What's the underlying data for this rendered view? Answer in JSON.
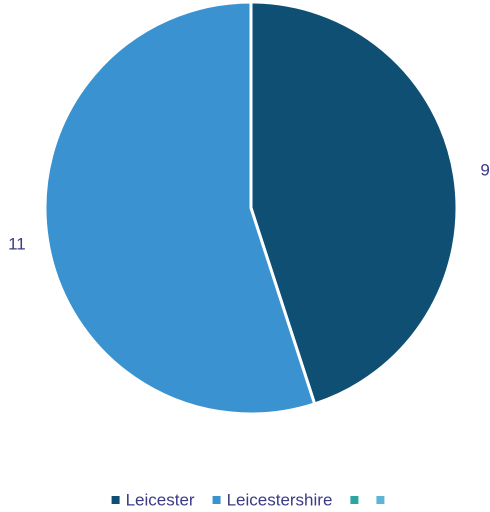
{
  "chart_data": {
    "type": "pie",
    "categories": [
      "Leicester",
      "Leicestershire",
      null,
      null
    ],
    "values": [
      9,
      11,
      0,
      0
    ],
    "colors": [
      "#0e4f73",
      "#3a93d0",
      "#2aa6a0",
      "#5db4d6"
    ],
    "legend": "bottom"
  }
}
